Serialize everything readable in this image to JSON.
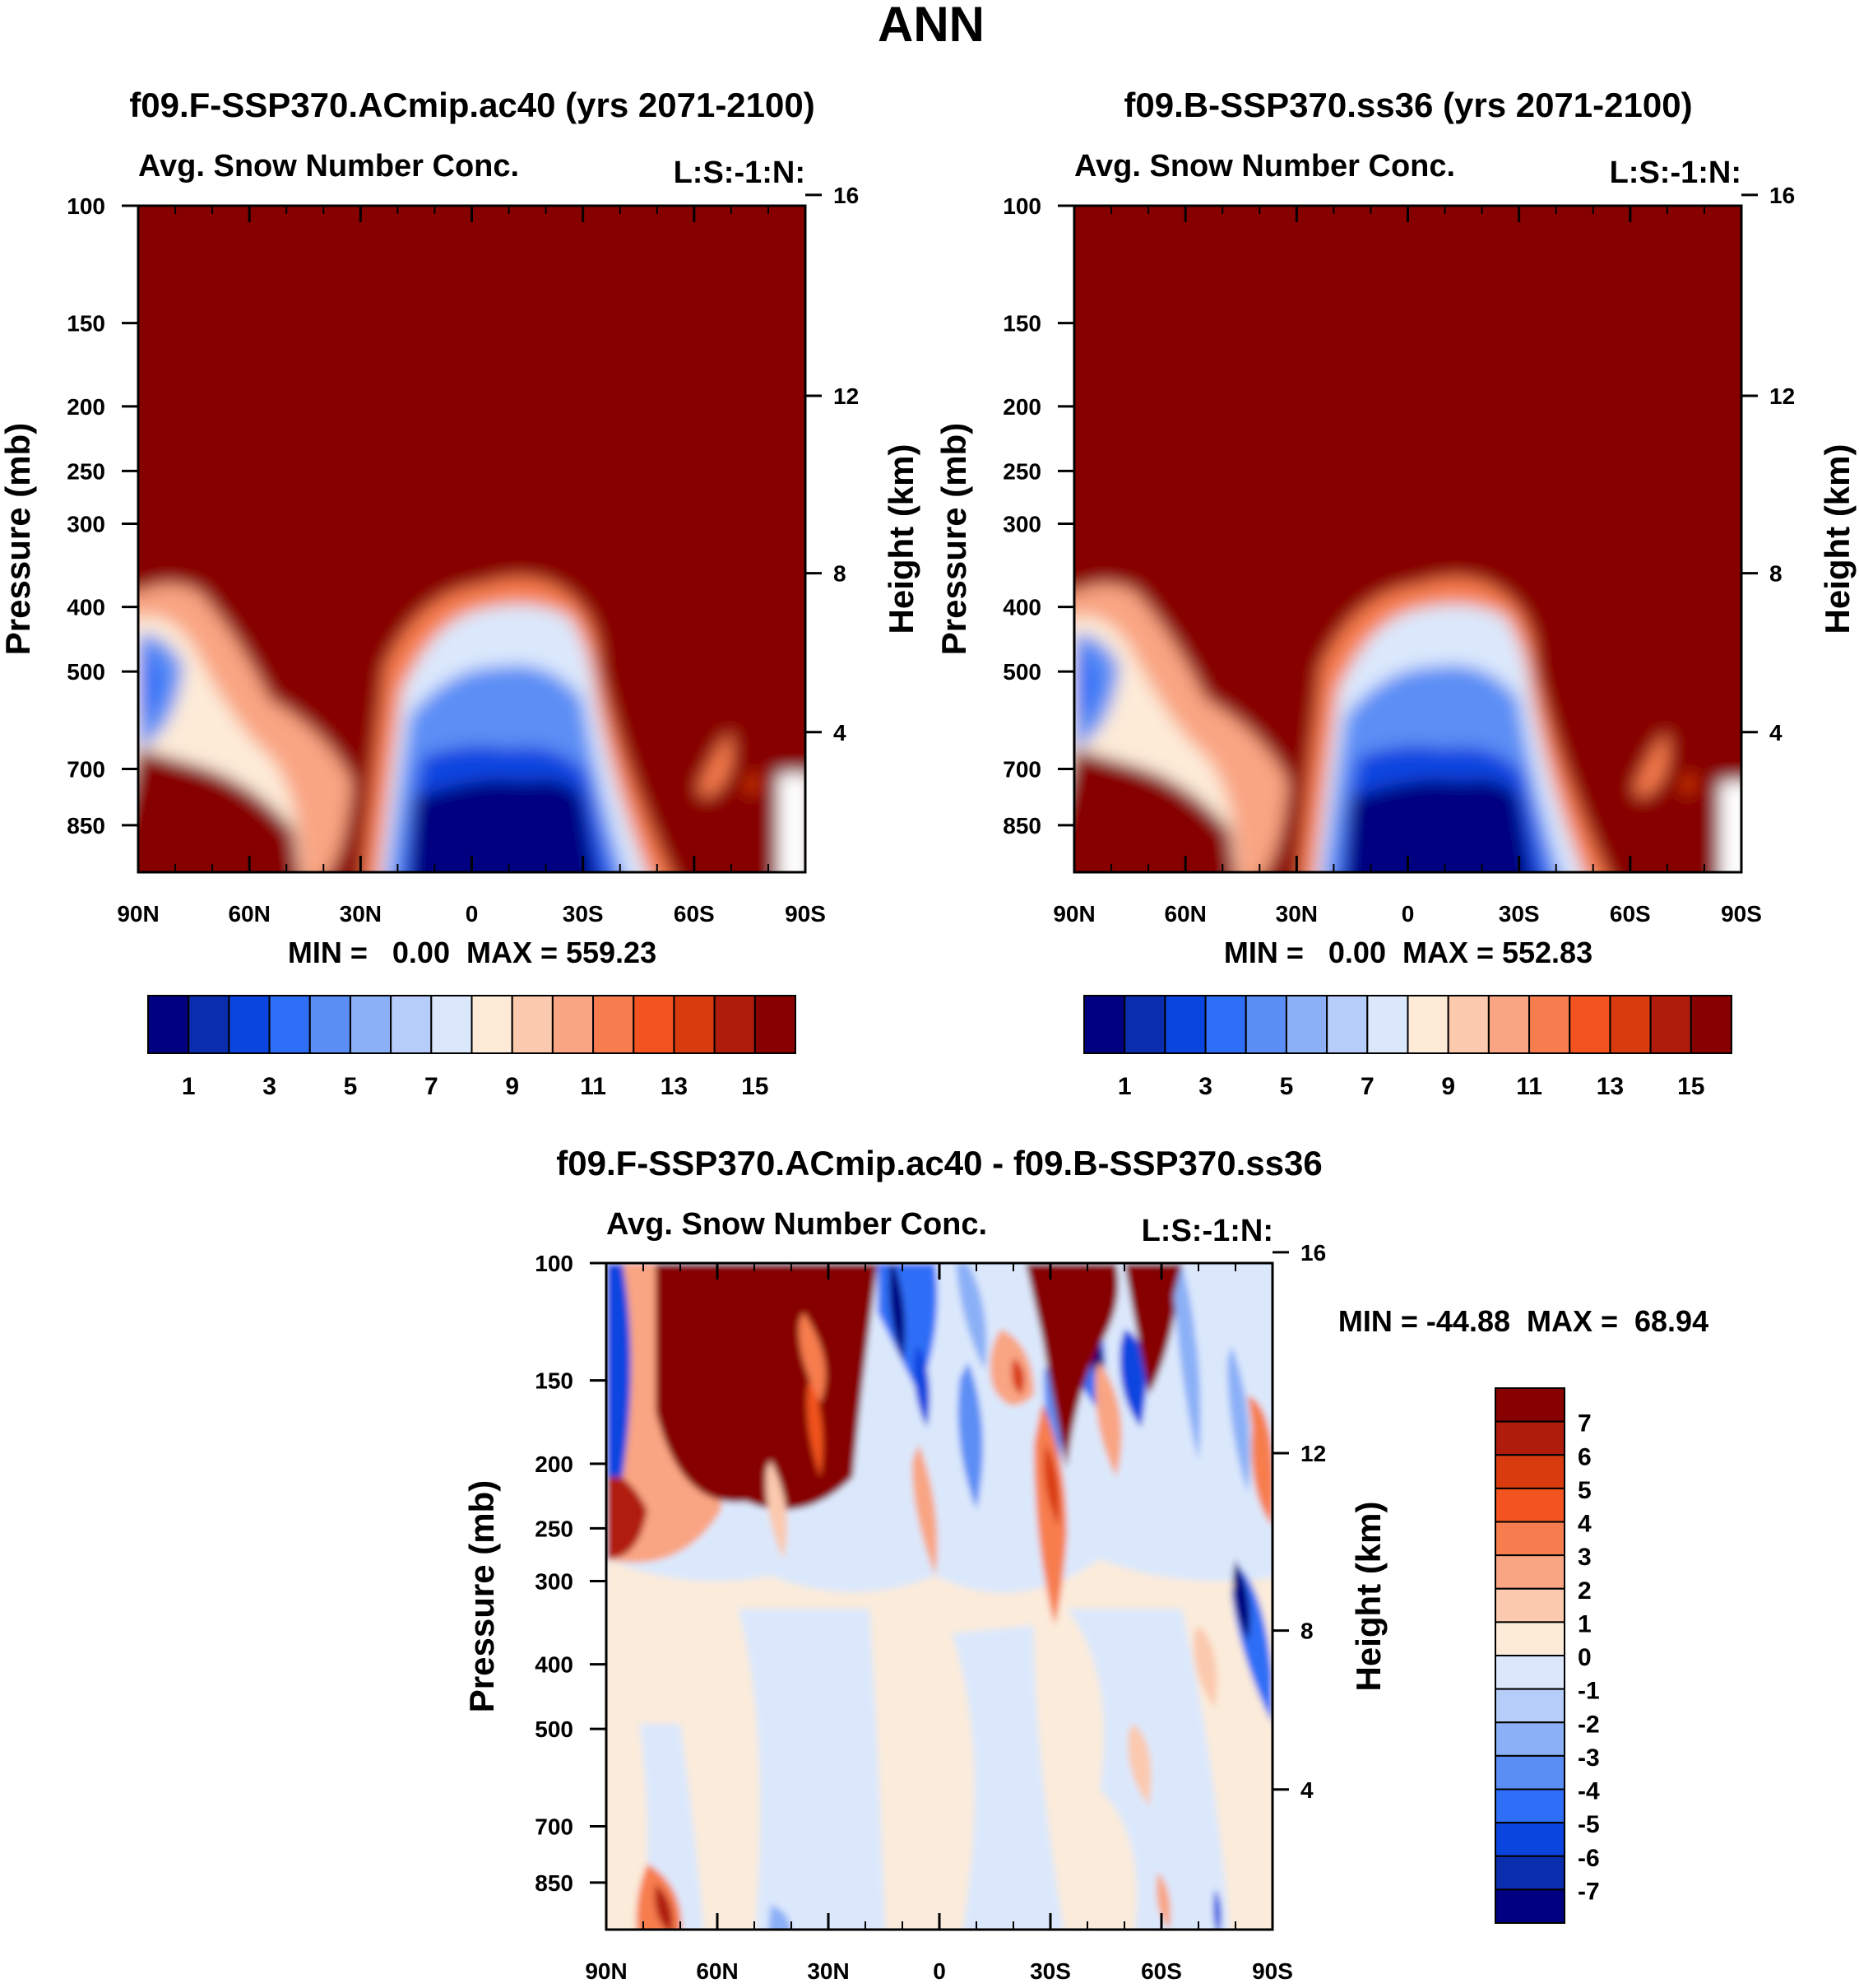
{
  "page_title": "ANN",
  "chart_data": [
    {
      "type": "heatmap",
      "id": "p1",
      "title": "f09.F-SSP370.ACmip.ac40 (yrs 2071-2100)",
      "subtitle_left": "Avg. Snow Number Conc.",
      "subtitle_right": "L:S:-1:N:",
      "ylabel": "Pressure (mb)",
      "ylabel_right": "Height (km)",
      "x_ticks": [
        "90N",
        "60N",
        "30N",
        "0",
        "30S",
        "60S",
        "90S"
      ],
      "x_range": [
        90,
        -90
      ],
      "y_ticks": [
        100,
        150,
        200,
        250,
        300,
        400,
        500,
        700,
        850
      ],
      "y_range": [
        100,
        1000
      ],
      "height_ticks": [
        16,
        12,
        8,
        4
      ],
      "stats": "MIN =   0.00  MAX = 559.23",
      "colorbar_labels": [
        "1",
        "3",
        "5",
        "7",
        "9",
        "11",
        "13",
        "15"
      ],
      "colorbar_levels": 16
    },
    {
      "type": "heatmap",
      "id": "p2",
      "title": "f09.B-SSP370.ss36 (yrs 2071-2100)",
      "subtitle_left": "Avg. Snow Number Conc.",
      "subtitle_right": "L:S:-1:N:",
      "ylabel": "Pressure (mb)",
      "ylabel_right": "Height (km)",
      "x_ticks": [
        "90N",
        "60N",
        "30N",
        "0",
        "30S",
        "60S",
        "90S"
      ],
      "x_range": [
        90,
        -90
      ],
      "y_ticks": [
        100,
        150,
        200,
        250,
        300,
        400,
        500,
        700,
        850
      ],
      "y_range": [
        100,
        1000
      ],
      "height_ticks": [
        16,
        12,
        8,
        4
      ],
      "stats": "MIN =   0.00  MAX = 552.83",
      "colorbar_labels": [
        "1",
        "3",
        "5",
        "7",
        "9",
        "11",
        "13",
        "15"
      ],
      "colorbar_levels": 16
    },
    {
      "type": "heatmap",
      "id": "p3",
      "title": "f09.F-SSP370.ACmip.ac40 - f09.B-SSP370.ss36",
      "subtitle_left": "Avg. Snow Number Conc.",
      "subtitle_right": "L:S:-1:N:",
      "ylabel": "Pressure (mb)",
      "ylabel_right": "Height (km)",
      "x_ticks": [
        "90N",
        "60N",
        "30N",
        "0",
        "30S",
        "60S",
        "90S"
      ],
      "x_range": [
        90,
        -90
      ],
      "y_ticks": [
        100,
        150,
        200,
        250,
        300,
        400,
        500,
        700,
        850
      ],
      "y_range": [
        100,
        1000
      ],
      "height_ticks": [
        16,
        12,
        8,
        4
      ],
      "stats": "MIN = -44.88  MAX =  68.94",
      "colorbar_labels": [
        "7",
        "6",
        "5",
        "4",
        "3",
        "2",
        "1",
        "0",
        "-1",
        "-2",
        "-3",
        "-4",
        "-5",
        "-6",
        "-7"
      ],
      "colorbar_levels": 16
    }
  ],
  "palette": [
    "#000080",
    "#0a2dad",
    "#0b45e0",
    "#2f6ef7",
    "#5b8ef5",
    "#8bb0f7",
    "#b6ccf9",
    "#dbe8fc",
    "#fdebd8",
    "#fbc9ae",
    "#f9a482",
    "#f77d4e",
    "#f2531f",
    "#d93b0f",
    "#b01c0c",
    "#870101"
  ]
}
